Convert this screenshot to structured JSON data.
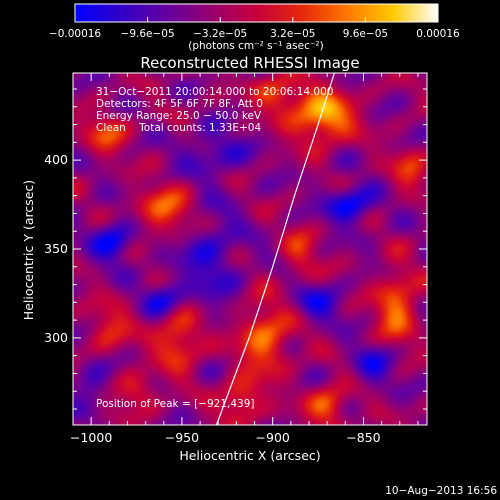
{
  "chart_data": {
    "type": "heatmap",
    "title": "Reconstructed RHESSI Image",
    "xlabel": "Heliocentric X (arcsec)",
    "ylabel": "Heliocentric Y (arcsec)",
    "xlim": [
      -1010,
      -815
    ],
    "ylim": [
      251,
      449
    ],
    "x_ticks": [
      -1000,
      -950,
      -900,
      -850
    ],
    "x_tick_labels": [
      "−1000",
      "−950",
      "−900",
      "−850"
    ],
    "y_ticks": [
      300,
      350,
      400
    ],
    "y_tick_labels": [
      "300",
      "350",
      "400"
    ],
    "colorbar": {
      "units": "(photons cm⁻² s⁻¹ asec⁻²)",
      "range": [
        -0.00016,
        0.00016
      ],
      "ticks": [
        -0.00016,
        -9.6e-05,
        -3.2e-05,
        3.2e-05,
        9.6e-05,
        0.00016
      ],
      "tick_labels": [
        "−0.00016",
        "−9.6e−05",
        "−3.2e−05",
        "3.2e−05",
        "9.6e−05",
        "0.00016"
      ],
      "colors": [
        "#0000ff",
        "#3000c8",
        "#6400a0",
        "#96006e",
        "#c8003c",
        "#e6280a",
        "#ff7800",
        "#ffc800",
        "#ffffff"
      ]
    },
    "info_lines": [
      "31−Oct−2011 20:00:14.000 to 20:06:14.000",
      "Detectors: 4F 5F 6F 7F 8F, Att 0",
      "Energy Range: 25.0 − 50.0 keV",
      "Clean    Total counts: 1.33E+04"
    ],
    "peak_label": "Position of Peak = [−921,439]",
    "peak_position": [
      -921,
      439
    ],
    "limb_points": [
      [
        -931,
        251
      ],
      [
        -913,
        300
      ],
      [
        -900,
        340
      ],
      [
        -888,
        380
      ],
      [
        -875,
        420
      ],
      [
        -866,
        449
      ]
    ],
    "sources": [
      {
        "x": -873,
        "y": 425,
        "intensity": 0.00016,
        "sx": 12,
        "sy": 10
      },
      {
        "x": -905,
        "y": 300,
        "intensity": 0.00012,
        "sx": 10,
        "sy": 14
      },
      {
        "x": -952,
        "y": 300,
        "intensity": 0.00011,
        "sx": 9,
        "sy": 12
      },
      {
        "x": -918,
        "y": 265,
        "intensity": 0.0001,
        "sx": 8,
        "sy": 8
      },
      {
        "x": -960,
        "y": 372,
        "intensity": 0.00011,
        "sx": 11,
        "sy": 9
      },
      {
        "x": -898,
        "y": 438,
        "intensity": 0.0001,
        "sx": 9,
        "sy": 7
      },
      {
        "x": -832,
        "y": 318,
        "intensity": 0.00012,
        "sx": 8,
        "sy": 14
      },
      {
        "x": -870,
        "y": 262,
        "intensity": 0.00011,
        "sx": 8,
        "sy": 8
      },
      {
        "x": -885,
        "y": 348,
        "intensity": 7e-05,
        "sx": 7,
        "sy": 10
      },
      {
        "x": -992,
        "y": 415,
        "intensity": 9e-05,
        "sx": 8,
        "sy": 8
      },
      {
        "x": -990,
        "y": 305,
        "intensity": 7e-05,
        "sx": 9,
        "sy": 10
      },
      {
        "x": -975,
        "y": 270,
        "intensity": 8e-05,
        "sx": 8,
        "sy": 7
      },
      {
        "x": -825,
        "y": 395,
        "intensity": 8e-05,
        "sx": 7,
        "sy": 8
      },
      {
        "x": -858,
        "y": 375,
        "intensity": -0.00012,
        "sx": 9,
        "sy": 7
      },
      {
        "x": -988,
        "y": 355,
        "intensity": -0.00011,
        "sx": 8,
        "sy": 8
      },
      {
        "x": -935,
        "y": 345,
        "intensity": -7e-05,
        "sx": 12,
        "sy": 20
      },
      {
        "x": -875,
        "y": 320,
        "intensity": -8e-05,
        "sx": 9,
        "sy": 7
      },
      {
        "x": -960,
        "y": 322,
        "intensity": -9e-05,
        "sx": 8,
        "sy": 7
      },
      {
        "x": -932,
        "y": 405,
        "intensity": -7e-05,
        "sx": 12,
        "sy": 9
      },
      {
        "x": -845,
        "y": 285,
        "intensity": -8e-05,
        "sx": 8,
        "sy": 8
      },
      {
        "x": -1000,
        "y": 275,
        "intensity": -7e-05,
        "sx": 7,
        "sy": 8
      }
    ]
  },
  "footer": {
    "timestamp": "10−Aug−2013 16:56"
  }
}
